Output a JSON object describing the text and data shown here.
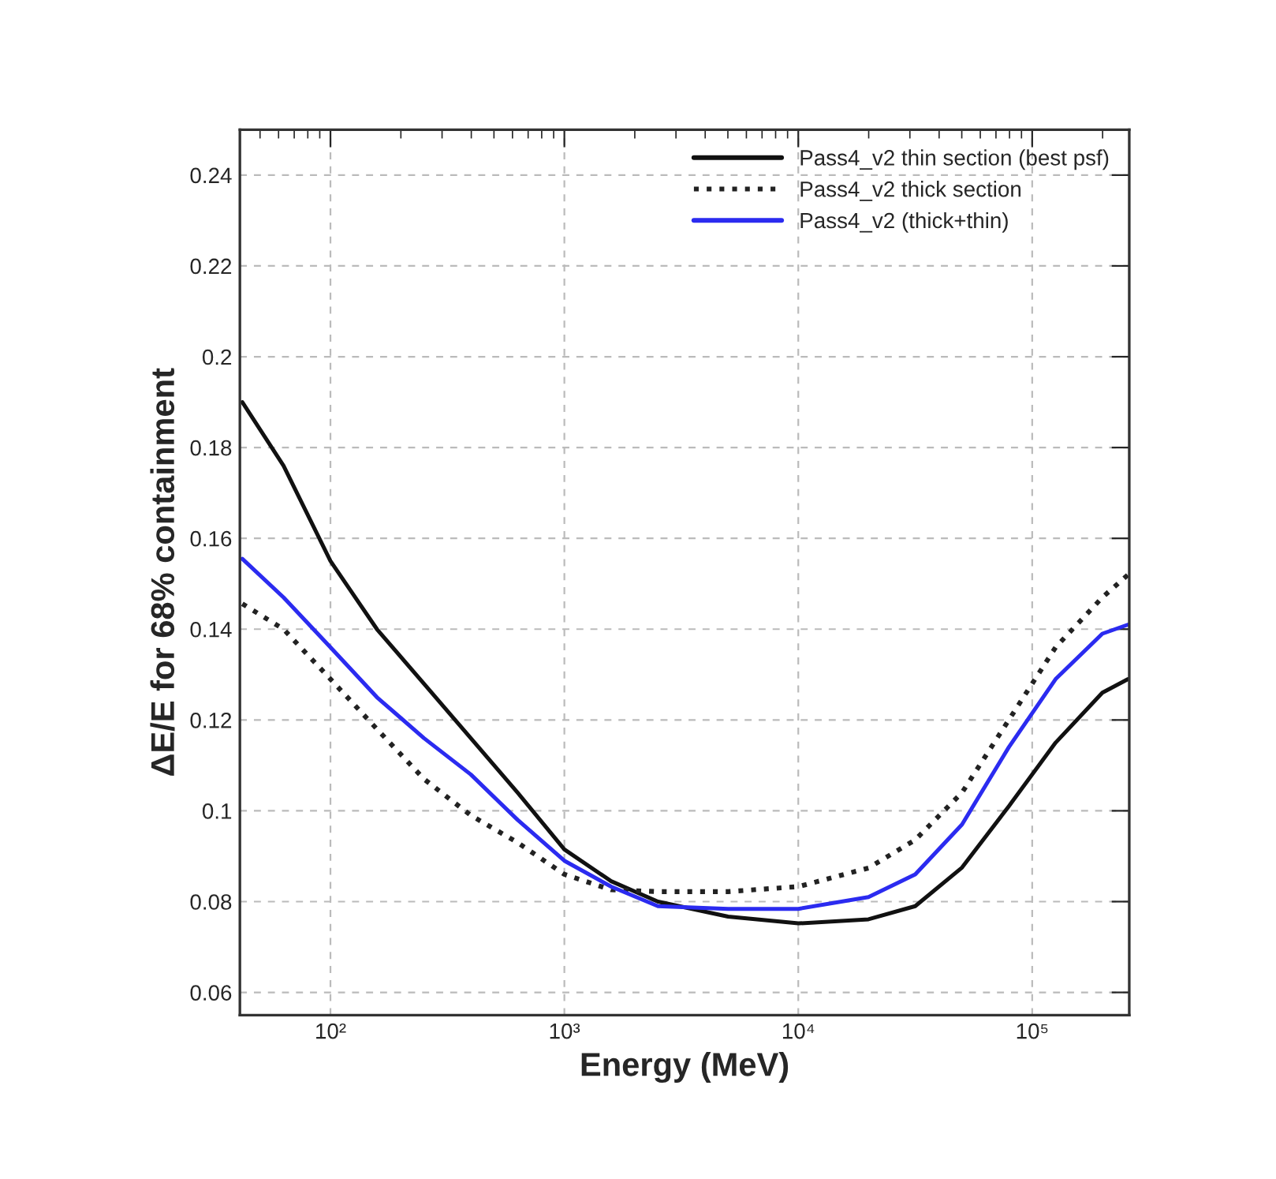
{
  "chart_data": {
    "type": "line",
    "xlabel": "Energy (MeV)",
    "ylabel": "ΔE/E for 68% containment",
    "log": "x",
    "grid": true,
    "legend": "top right",
    "x": [
      42,
      63,
      100,
      158,
      251,
      398,
      631,
      1000,
      1585,
      2512,
      5012,
      10000,
      19953,
      31623,
      50119,
      79433,
      125893,
      199526,
      257000
    ],
    "xlim": [
      41,
      260000
    ],
    "xticks": [
      {
        "value": 100,
        "label": "10²"
      },
      {
        "value": 1000,
        "label": "10³"
      },
      {
        "value": 10000,
        "label": "10⁴"
      },
      {
        "value": 100000,
        "label": "10⁵"
      }
    ],
    "ylim": [
      0.055,
      0.25
    ],
    "yticks": [
      0.06,
      0.08,
      0.1,
      0.12,
      0.14,
      0.16,
      0.18,
      0.2,
      0.22,
      0.24
    ],
    "series": [
      {
        "name": "Pass4_v2 thin section (best psf)",
        "color": "#111111",
        "line_style": "solid",
        "values": [
          0.19,
          0.176,
          0.155,
          0.14,
          0.128,
          0.116,
          0.104,
          0.0915,
          0.0845,
          0.08,
          0.0767,
          0.0752,
          0.0761,
          0.079,
          0.0875,
          0.101,
          0.115,
          0.126,
          0.129
        ]
      },
      {
        "name": "Pass4_v2 thick section",
        "color": "#222222",
        "line_style": "dotted",
        "values": [
          0.1456,
          0.14,
          0.129,
          0.118,
          0.107,
          0.099,
          0.093,
          0.086,
          0.0826,
          0.0822,
          0.0822,
          0.0833,
          0.0874,
          0.0936,
          0.104,
          0.12,
          0.136,
          0.147,
          0.152
        ]
      },
      {
        "name": "Pass4_v2 (thick+thin)",
        "color": "#2b2bf0",
        "line_style": "solid",
        "values": [
          0.1555,
          0.147,
          0.136,
          0.125,
          0.116,
          0.108,
          0.098,
          0.089,
          0.0833,
          0.079,
          0.0784,
          0.0784,
          0.081,
          0.086,
          0.097,
          0.114,
          0.129,
          0.139,
          0.141
        ]
      }
    ]
  }
}
